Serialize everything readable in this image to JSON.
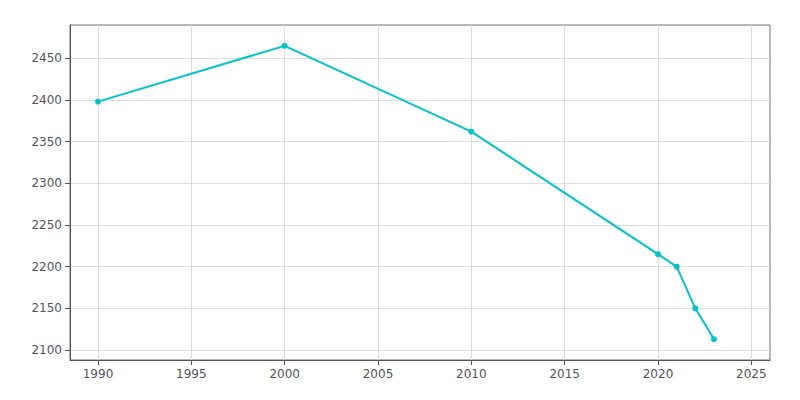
{
  "chart_data": {
    "type": "line",
    "x": [
      1990,
      2000,
      2010,
      2020,
      2021,
      2022,
      2023
    ],
    "values": [
      2398,
      2465,
      2362,
      2215,
      2200,
      2150,
      2113
    ],
    "color": "#00C5C8",
    "marker": "circle",
    "xlim": [
      1988.5,
      2026
    ],
    "ylim": [
      2088,
      2490
    ],
    "xticks": [
      1990,
      1995,
      2000,
      2005,
      2010,
      2015,
      2020,
      2025
    ],
    "yticks": [
      2100,
      2150,
      2200,
      2250,
      2300,
      2350,
      2400,
      2450
    ],
    "grid": true
  }
}
